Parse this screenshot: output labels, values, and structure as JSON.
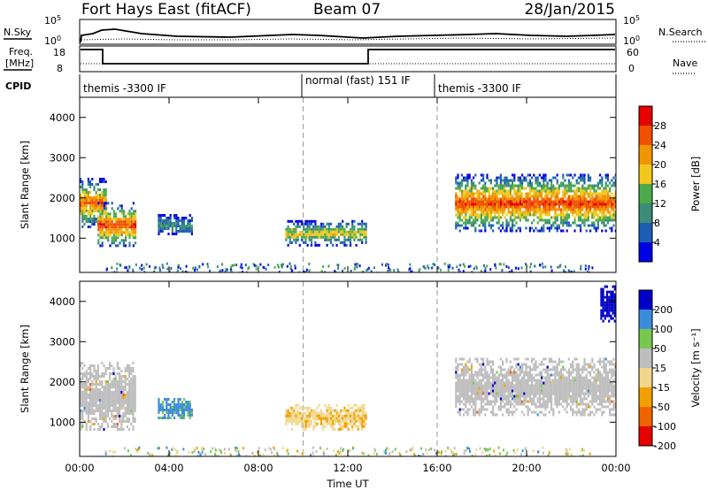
{
  "header": {
    "station": "Fort Hays East (fitACF)",
    "beam": "Beam 07",
    "date": "28/Jan/2015"
  },
  "strip_labels": {
    "nsky": "N.Sky",
    "nsearch": "N.Search",
    "freq": "Freq.",
    "freq_unit": "[MHz]",
    "nave": "Nave",
    "cpid": "CPID"
  },
  "strip_ticks": {
    "noise_left": [
      "10^5",
      "10^0"
    ],
    "noise_right": [
      "10^5",
      "10^0"
    ],
    "freq_left": [
      "18",
      "8"
    ],
    "nave_right": [
      "60",
      "0"
    ]
  },
  "cpid_segments": [
    {
      "label": "themis -3300 IF",
      "start_hour": 0,
      "end_hour": 10
    },
    {
      "label": "normal (fast) 151 IF",
      "start_hour": 10,
      "end_hour": 16
    },
    {
      "label": "themis -3300 IF",
      "start_hour": 16,
      "end_hour": 24
    }
  ],
  "colors": {
    "power_scale": [
      "#0000e6",
      "#1e5fb4",
      "#3c8c78",
      "#4caa4c",
      "#f0c81e",
      "#f09600",
      "#f05000",
      "#e60000"
    ],
    "velocity_scale": [
      "#e60000",
      "#f06400",
      "#f0a000",
      "#f0d78c",
      "#bebebe",
      "#78c850",
      "#3c8cdc",
      "#0000c8"
    ],
    "ground_scatter": "#bebebe"
  },
  "chart_data": [
    {
      "type": "heatmap",
      "title": "Power",
      "xlabel": "Time UT",
      "ylabel": "Slant Range [km]",
      "xlim": [
        0,
        24
      ],
      "ylim": [
        150,
        4500
      ],
      "x_ticks": [
        "00:00",
        "04:00",
        "08:00",
        "12:00",
        "16:00",
        "20:00",
        "00:00"
      ],
      "y_ticks": [
        1000,
        2000,
        3000,
        4000
      ],
      "colorbar": {
        "label": "Power [dB]",
        "ticks": [
          4,
          8,
          12,
          16,
          20,
          24,
          28
        ],
        "range": [
          0,
          30
        ]
      },
      "scatter_regions": [
        {
          "t_start": 0.0,
          "t_end": 1.2,
          "r_low": 1300,
          "r_high": 2500,
          "peak_db": 24
        },
        {
          "t_start": 0.8,
          "t_end": 2.5,
          "r_low": 800,
          "r_high": 1900,
          "peak_db": 26
        },
        {
          "t_start": 3.5,
          "t_end": 5.0,
          "r_low": 1100,
          "r_high": 1600,
          "peak_db": 10
        },
        {
          "t_start": 9.2,
          "t_end": 12.8,
          "r_low": 850,
          "r_high": 1450,
          "peak_db": 18
        },
        {
          "t_start": 16.8,
          "t_end": 24.0,
          "r_low": 1200,
          "r_high": 2600,
          "peak_db": 26
        }
      ]
    },
    {
      "type": "heatmap",
      "title": "Velocity",
      "xlabel": "Time UT",
      "ylabel": "Slant Range [km]",
      "xlim": [
        0,
        24
      ],
      "ylim": [
        150,
        4500
      ],
      "x_ticks": [
        "00:00",
        "04:00",
        "08:00",
        "12:00",
        "16:00",
        "20:00",
        "00:00"
      ],
      "y_ticks": [
        1000,
        2000,
        3000,
        4000
      ],
      "colorbar": {
        "label": "Velocity [m s⁻¹]",
        "ticks": [
          200,
          100,
          50,
          15,
          -15,
          -50,
          -100,
          -200
        ],
        "range": [
          -250,
          250
        ]
      },
      "scatter_regions": [
        {
          "t_start": 0.0,
          "t_end": 2.5,
          "r_low": 800,
          "r_high": 2500,
          "velocity": 0,
          "ground_scatter": true
        },
        {
          "t_start": 3.5,
          "t_end": 5.0,
          "r_low": 1100,
          "r_high": 1600,
          "velocity": 60
        },
        {
          "t_start": 9.2,
          "t_end": 12.8,
          "r_low": 850,
          "r_high": 1450,
          "velocity": -40
        },
        {
          "t_start": 16.8,
          "t_end": 24.0,
          "r_low": 1200,
          "r_high": 2600,
          "velocity": 0,
          "ground_scatter": true
        },
        {
          "t_start": 23.3,
          "t_end": 24.0,
          "r_low": 3500,
          "r_high": 4400,
          "velocity": 220
        }
      ]
    }
  ]
}
